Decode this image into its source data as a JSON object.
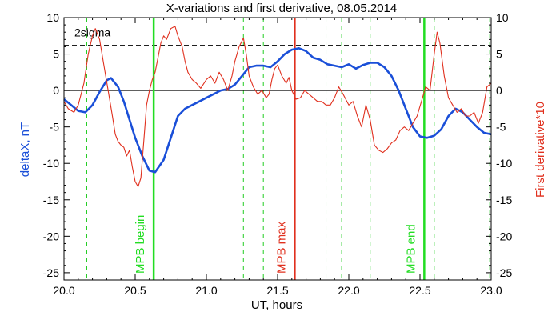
{
  "chart_data": {
    "type": "line",
    "title": "X-variations and first derivative, 08.05.2014",
    "xlabel": "UT, hours",
    "ylabel_left": "deltaX, nT",
    "ylabel_right": "First derivative*10",
    "xlim": [
      20.0,
      23.0
    ],
    "ylim_left": [
      -26,
      10
    ],
    "ylim_right": [
      -26,
      10
    ],
    "x_ticks": [
      "20.0",
      "20.5",
      "21.0",
      "21.5",
      "22.0",
      "22.5",
      "23.0"
    ],
    "y_ticks_left": [
      "10",
      "5",
      "0",
      "-5",
      "-10",
      "-15",
      "-20",
      "-25"
    ],
    "y_ticks_right": [
      "10",
      "5",
      "0",
      "-5",
      "-10",
      "-15",
      "-20",
      "-25"
    ],
    "colors": {
      "deltax": "#1a4fd8",
      "derivative": "#e0301e",
      "mpb_marker": "#22dd22",
      "max_marker": "#e0301e",
      "dashed": "#22cc22",
      "axes": "#000000"
    },
    "annotations": {
      "two_sigma": {
        "label": "2sigma",
        "y": 6.2
      },
      "zero_line_y": 0
    },
    "vertical_markers": [
      {
        "x": 20.63,
        "label": "MPB begin",
        "color": "#22dd22"
      },
      {
        "x": 21.62,
        "label": "MPB max",
        "color": "#e0301e"
      },
      {
        "x": 22.53,
        "label": "MPB end",
        "color": "#22dd22"
      }
    ],
    "dashed_markers": [
      20.16,
      20.63,
      21.26,
      21.4,
      21.84,
      21.95,
      22.15,
      22.6,
      22.99
    ],
    "series": [
      {
        "name": "deltaX, nT",
        "axis": "left",
        "x": [
          20.0,
          20.05,
          20.1,
          20.15,
          20.2,
          20.25,
          20.3,
          20.33,
          20.38,
          20.42,
          20.46,
          20.5,
          20.55,
          20.6,
          20.64,
          20.7,
          20.75,
          20.8,
          20.85,
          20.9,
          20.95,
          21.0,
          21.05,
          21.1,
          21.15,
          21.2,
          21.25,
          21.3,
          21.35,
          21.4,
          21.45,
          21.5,
          21.55,
          21.6,
          21.65,
          21.7,
          21.75,
          21.8,
          21.85,
          21.9,
          21.95,
          22.0,
          22.05,
          22.1,
          22.15,
          22.2,
          22.25,
          22.3,
          22.35,
          22.4,
          22.45,
          22.5,
          22.55,
          22.6,
          22.65,
          22.7,
          22.75,
          22.8,
          22.85,
          22.9,
          22.95,
          23.0
        ],
        "values": [
          -1.2,
          -2.0,
          -2.8,
          -3.0,
          -2.0,
          -0.2,
          1.4,
          1.7,
          0.5,
          -1.5,
          -4.0,
          -6.5,
          -9.0,
          -11.0,
          -11.2,
          -9.5,
          -6.5,
          -3.5,
          -2.5,
          -2.0,
          -1.5,
          -1.0,
          -0.5,
          0.0,
          0.2,
          0.8,
          2.0,
          3.2,
          3.4,
          3.4,
          3.2,
          4.0,
          5.0,
          5.6,
          5.8,
          5.4,
          4.5,
          4.2,
          3.6,
          3.4,
          3.2,
          3.6,
          3.0,
          3.5,
          3.8,
          3.8,
          3.2,
          2.0,
          0.0,
          -2.5,
          -5.0,
          -6.3,
          -6.5,
          -6.2,
          -5.3,
          -3.5,
          -2.5,
          -3.0,
          -4.0,
          -5.0,
          -5.8,
          -6.0
        ]
      },
      {
        "name": "First derivative*10",
        "axis": "right",
        "x": [
          20.0,
          20.03,
          20.07,
          20.1,
          20.14,
          20.17,
          20.2,
          20.22,
          20.25,
          20.28,
          20.31,
          20.34,
          20.36,
          20.38,
          20.4,
          20.42,
          20.44,
          20.46,
          20.48,
          20.5,
          20.52,
          20.54,
          20.56,
          20.58,
          20.6,
          20.62,
          20.64,
          20.66,
          20.68,
          20.7,
          20.72,
          20.75,
          20.78,
          20.8,
          20.83,
          20.85,
          20.87,
          20.9,
          20.93,
          20.96,
          21.0,
          21.03,
          21.06,
          21.09,
          21.12,
          21.15,
          21.18,
          21.2,
          21.23,
          21.26,
          21.28,
          21.3,
          21.33,
          21.36,
          21.39,
          21.42,
          21.44,
          21.46,
          21.48,
          21.5,
          21.53,
          21.56,
          21.58,
          21.6,
          21.63,
          21.66,
          21.69,
          21.72,
          21.75,
          21.78,
          21.81,
          21.84,
          21.87,
          21.9,
          21.93,
          21.96,
          22.0,
          22.03,
          22.06,
          22.09,
          22.12,
          22.15,
          22.18,
          22.21,
          22.24,
          22.27,
          22.3,
          22.33,
          22.36,
          22.39,
          22.42,
          22.45,
          22.48,
          22.51,
          22.54,
          22.57,
          22.6,
          22.62,
          22.64,
          22.67,
          22.7,
          22.73,
          22.76,
          22.79,
          22.82,
          22.85,
          22.88,
          22.91,
          22.94,
          22.97,
          23.0
        ],
        "values": [
          -1.5,
          -2.5,
          -3.0,
          -2.0,
          1.0,
          5.0,
          7.5,
          8.5,
          7.0,
          3.5,
          0.0,
          -3.5,
          -6.0,
          -7.0,
          -7.5,
          -7.8,
          -9.0,
          -8.2,
          -10.5,
          -12.5,
          -13.2,
          -12.0,
          -7.0,
          -2.0,
          0.0,
          1.5,
          2.5,
          4.5,
          6.5,
          7.5,
          7.0,
          8.5,
          8.8,
          7.5,
          6.0,
          4.0,
          2.5,
          1.5,
          1.0,
          0.3,
          1.5,
          2.0,
          1.0,
          2.5,
          1.5,
          0.0,
          2.0,
          4.0,
          6.0,
          7.2,
          5.0,
          2.0,
          0.5,
          -0.5,
          0.0,
          -1.0,
          -0.5,
          1.5,
          3.0,
          3.5,
          2.0,
          1.0,
          1.8,
          0.0,
          -1.2,
          -1.0,
          0.0,
          -0.5,
          -1.0,
          -1.5,
          -1.5,
          -2.0,
          -2.0,
          -1.0,
          0.5,
          -0.5,
          -2.0,
          -1.5,
          -3.5,
          -5.0,
          -2.0,
          -4.0,
          -7.5,
          -8.2,
          -8.5,
          -8.0,
          -7.2,
          -6.8,
          -5.5,
          -5.0,
          -5.5,
          -4.5,
          -3.5,
          -1.5,
          0.5,
          0.0,
          5.0,
          8.0,
          6.5,
          2.0,
          -1.0,
          -2.0,
          -3.0,
          -2.5,
          -3.5,
          -3.5,
          -3.0,
          -4.5,
          -3.0,
          0.5,
          1.0
        ]
      }
    ]
  }
}
